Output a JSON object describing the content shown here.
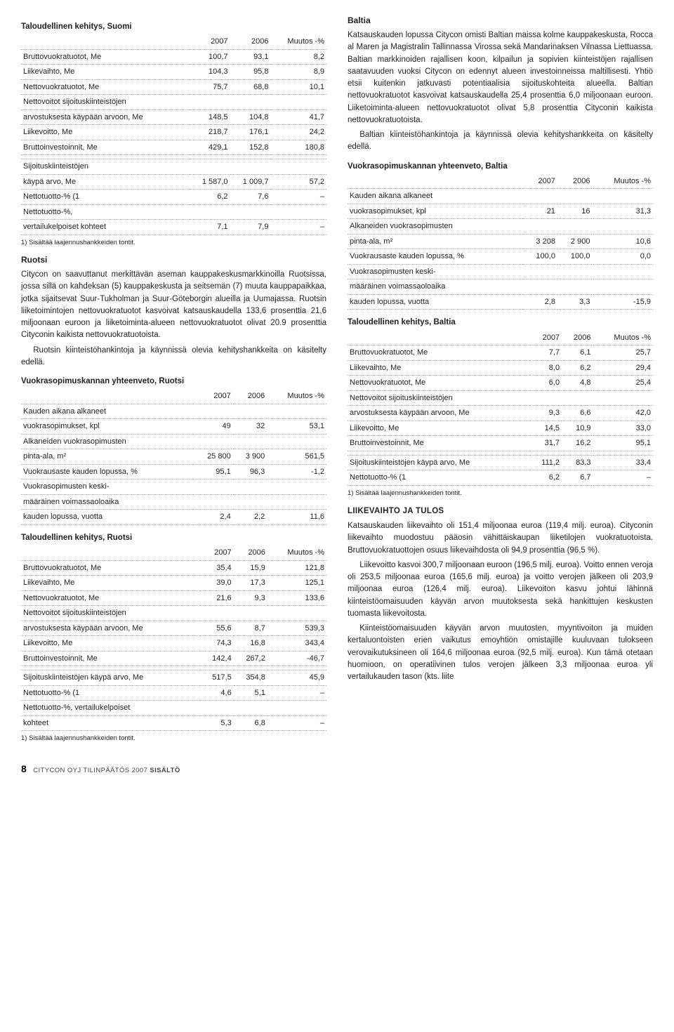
{
  "colors": {
    "header_rule": "#c00",
    "dotted_rule": "#aaa",
    "text": "#222",
    "background": "#ffffff"
  },
  "left": {
    "table1": {
      "title": "Taloudellinen kehitys, Suomi",
      "cols": [
        "",
        "2007",
        "2006",
        "Muutos -%"
      ],
      "rows": [
        [
          "Bruttovuokratuotot, Me",
          "100,7",
          "93,1",
          "8,2"
        ],
        [
          "Liikevaihto, Me",
          "104,3",
          "95,8",
          "8,9"
        ],
        [
          "Nettovuokratuotot, Me",
          "75,7",
          "68,8",
          "10,1"
        ],
        [
          "Nettovoitot sijoituskiinteistöjen",
          "",
          "",
          ""
        ],
        [
          "arvostuksesta käypään arvoon, Me",
          "148,5",
          "104,8",
          "41,7"
        ],
        [
          "Liikevoitto, Me",
          "218,7",
          "176,1",
          "24,2"
        ],
        [
          "Bruttoinvestoinnit, Me",
          "429,1",
          "152,8",
          "180,8"
        ]
      ],
      "rows2": [
        [
          "Sijoituskiinteistöjen",
          "",
          "",
          ""
        ],
        [
          "käypä arvo, Me",
          "1 587,0",
          "1 009,7",
          "57,2"
        ],
        [
          "Nettotuotto-% (1",
          "6,2",
          "7,6",
          "–"
        ],
        [
          "Nettotuotto-%,",
          "",
          "",
          ""
        ],
        [
          "vertailukelpoiset kohteet",
          "7,1",
          "7,9",
          "–"
        ]
      ],
      "footnote": "1) Sisältää laajennushankkeiden tontit."
    },
    "ruotsi": {
      "heading": "Ruotsi",
      "p1": "Citycon on saavuttanut merkittävän aseman kauppakeskusmarkkinoilla Ruotsissa, jossa sillä on kahdeksan (5) kauppakeskusta ja seitsemän (7) muuta kauppapaikkaa, jotka sijaitsevat Suur-Tukholman ja Suur-Göteborgin alueilla ja Uumajassa. Ruotsin liiketoimintojen nettovuokratuotot kasvoivat katsauskaudella 133,6 prosenttia 21,6 miljoonaan euroon ja liiketoiminta-alueen nettovuokratuotot olivat 20.9 prosenttia Cityconin kaikista nettovuokratuotoista.",
      "p2": "Ruotsin kiinteistöhankintoja ja käynnissä olevia kehityshankkeita on käsitelty edellä."
    },
    "table2": {
      "title": "Vuokrasopimuskannan yhteenveto, Ruotsi",
      "cols": [
        "",
        "2007",
        "2006",
        "Muutos -%"
      ],
      "rows": [
        [
          "Kauden aikana alkaneet",
          "",
          "",
          ""
        ],
        [
          "vuokrasopimukset, kpl",
          "49",
          "32",
          "53,1"
        ],
        [
          "Alkaneiden vuokrasopimusten",
          "",
          "",
          ""
        ],
        [
          "pinta-ala, m²",
          "25 800",
          "3 900",
          "561,5"
        ],
        [
          "Vuokrausaste kauden lopussa, %",
          "95,1",
          "96,3",
          "-1,2"
        ],
        [
          "Vuokrasopimusten keski-",
          "",
          "",
          ""
        ],
        [
          "määräinen voimassaoloaika",
          "",
          "",
          ""
        ],
        [
          "kauden lopussa, vuotta",
          "2,4",
          "2,2",
          "11,6"
        ]
      ]
    },
    "table3": {
      "title": "Taloudellinen kehitys, Ruotsi",
      "cols": [
        "",
        "2007",
        "2006",
        "Muutos -%"
      ],
      "rows": [
        [
          "Bruttovuokratuotot, Me",
          "35,4",
          "15,9",
          "121,8"
        ],
        [
          "Liikevaihto, Me",
          "39,0",
          "17,3",
          "125,1"
        ],
        [
          "Nettovuokratuotot, Me",
          "21,6",
          "9,3",
          "133,6"
        ],
        [
          "Nettovoitot sijoituskiinteistöjen",
          "",
          "",
          ""
        ],
        [
          "arvostuksesta käypään arvoon, Me",
          "55,6",
          "8,7",
          "539,3"
        ],
        [
          "Liikevoitto, Me",
          "74,3",
          "16,8",
          "343,4"
        ],
        [
          "Bruttoinvestoinnit, Me",
          "142,4",
          "267,2",
          "-46,7"
        ]
      ],
      "rows2": [
        [
          "Sijoituskiinteistöjen käypä arvo, Me",
          "517,5",
          "354,8",
          "45,9"
        ],
        [
          "Nettotuotto-% (1",
          "4,6",
          "5,1",
          "–"
        ],
        [
          "Nettotuotto-%, vertailukelpoiset",
          "",
          "",
          ""
        ],
        [
          "kohteet",
          "5,3",
          "6,8",
          "–"
        ]
      ],
      "footnote": "1) Sisältää laajennushankkeiden tontit."
    }
  },
  "right": {
    "baltia": {
      "heading": "Baltia",
      "p1": "Katsauskauden lopussa Citycon omisti Baltian maissa kolme kauppakeskusta, Rocca al Maren ja Magistralin Tallinnassa Virossa sekä Mandarinaksen Vilnassa Liettuassa. Baltian markkinoiden rajallisen koon, kilpailun ja sopivien kiinteistöjen rajallisen saatavuuden vuoksi Citycon on edennyt alueen investoinneissa maltillisesti. Yhtiö etsii kuitenkin jatkuvasti potentiaalisia sijoituskohteita alueella. Baltian nettovuokratuotot kasvoivat katsauskaudella 25,4 prosenttia 6,0 miljoonaan euroon. Liiketoiminta-alueen nettovuokratuotot olivat 5,8 prosenttia Cityconin kaikista nettovuokratuotoista.",
      "p2": "Baltian kiinteistöhankintoja ja käynnissä olevia kehityshankkeita on käsitelty edellä."
    },
    "table4": {
      "title": "Vuokrasopimuskannan yhteenveto, Baltia",
      "cols": [
        "",
        "2007",
        "2006",
        "Muutos -%"
      ],
      "rows": [
        [
          "Kauden aikana alkaneet",
          "",
          "",
          ""
        ],
        [
          "vuokrasopimukset, kpl",
          "21",
          "16",
          "31,3"
        ],
        [
          "Alkaneiden vuokrasopimusten",
          "",
          "",
          ""
        ],
        [
          "pinta-ala, m²",
          "3 208",
          "2 900",
          "10,6"
        ],
        [
          "Vuokrausaste kauden lopussa, %",
          "100,0",
          "100,0",
          "0,0"
        ],
        [
          "Vuokrasopimusten keski-",
          "",
          "",
          ""
        ],
        [
          "määräinen voimassaoloaika",
          "",
          "",
          ""
        ],
        [
          "kauden lopussa, vuotta",
          "2,8",
          "3,3",
          "-15,9"
        ]
      ]
    },
    "table5": {
      "title": "Taloudellinen kehitys, Baltia",
      "cols": [
        "",
        "2007",
        "2006",
        "Muutos -%"
      ],
      "rows": [
        [
          "Bruttovuokratuotot, Me",
          "7,7",
          "6,1",
          "25,7"
        ],
        [
          "Liikevaihto, Me",
          "8,0",
          "6,2",
          "29,4"
        ],
        [
          "Nettovuokratuotot, Me",
          "6,0",
          "4,8",
          "25,4"
        ],
        [
          "Nettovoitot sijoituskiinteistöjen",
          "",
          "",
          ""
        ],
        [
          "arvostuksesta käypään arvoon, Me",
          "9,3",
          "6,6",
          "42,0"
        ],
        [
          "Liikevoitto, Me",
          "14,5",
          "10,9",
          "33,0"
        ],
        [
          "Bruttoinvestoinnit, Me",
          "31,7",
          "16,2",
          "95,1"
        ]
      ],
      "rows2": [
        [
          "Sijoituskiinteistöjen käypä arvo, Me",
          "111,2",
          "83,3",
          "33,4"
        ],
        [
          "Nettotuotto-% (1",
          "6,2",
          "6,7",
          "–"
        ]
      ],
      "footnote": "1) Sisältää laajennushankkeiden tontit."
    },
    "liikevaihto": {
      "heading": "LIIKEVAIHTO JA TULOS",
      "p1": "Katsauskauden liikevaihto oli 151,4 miljoonaa euroa (119,4 milj. euroa). Cityconin liikevaihto muodostuu pääosin vähittäiskaupan liiketilojen vuokratuotoista. Bruttovuokratuottojen osuus liikevaihdosta oli 94,9 prosenttia (96,5 %).",
      "p2": "Liikevoitto kasvoi 300,7 miljoonaan euroon (196,5 milj. euroa). Voitto ennen veroja oli 253,5 miljoonaa euroa (165,6 milj. euroa) ja voitto verojen jälkeen oli 203,9 miljoonaa euroa (126,4 milj. euroa). Liikevoiton kasvu johtui lähinnä kiinteistöomaisuuden käyvän arvon muutoksesta sekä hankittujen keskusten tuomasta liikevoitosta.",
      "p3": "Kiinteistöomaisuuden käyvän arvon muutosten, myyntivoiton ja muiden kertaluontoisten erien vaikutus emoyhtiön omistajille kuuluvaan tulokseen verovaikutuksineen oli 164,6 miljoonaa euroa (92,5 milj. euroa). Kun tämä otetaan huomioon, on operatiivinen tulos verojen jälkeen 3,3 miljoonaa euroa yli vertailukauden tason (kts. liite"
    }
  },
  "footer": {
    "pagenum": "8",
    "label": "CITYCON OYJ TILINPÄÄTÖS 2007 ",
    "section": "SISÄLTÖ"
  }
}
